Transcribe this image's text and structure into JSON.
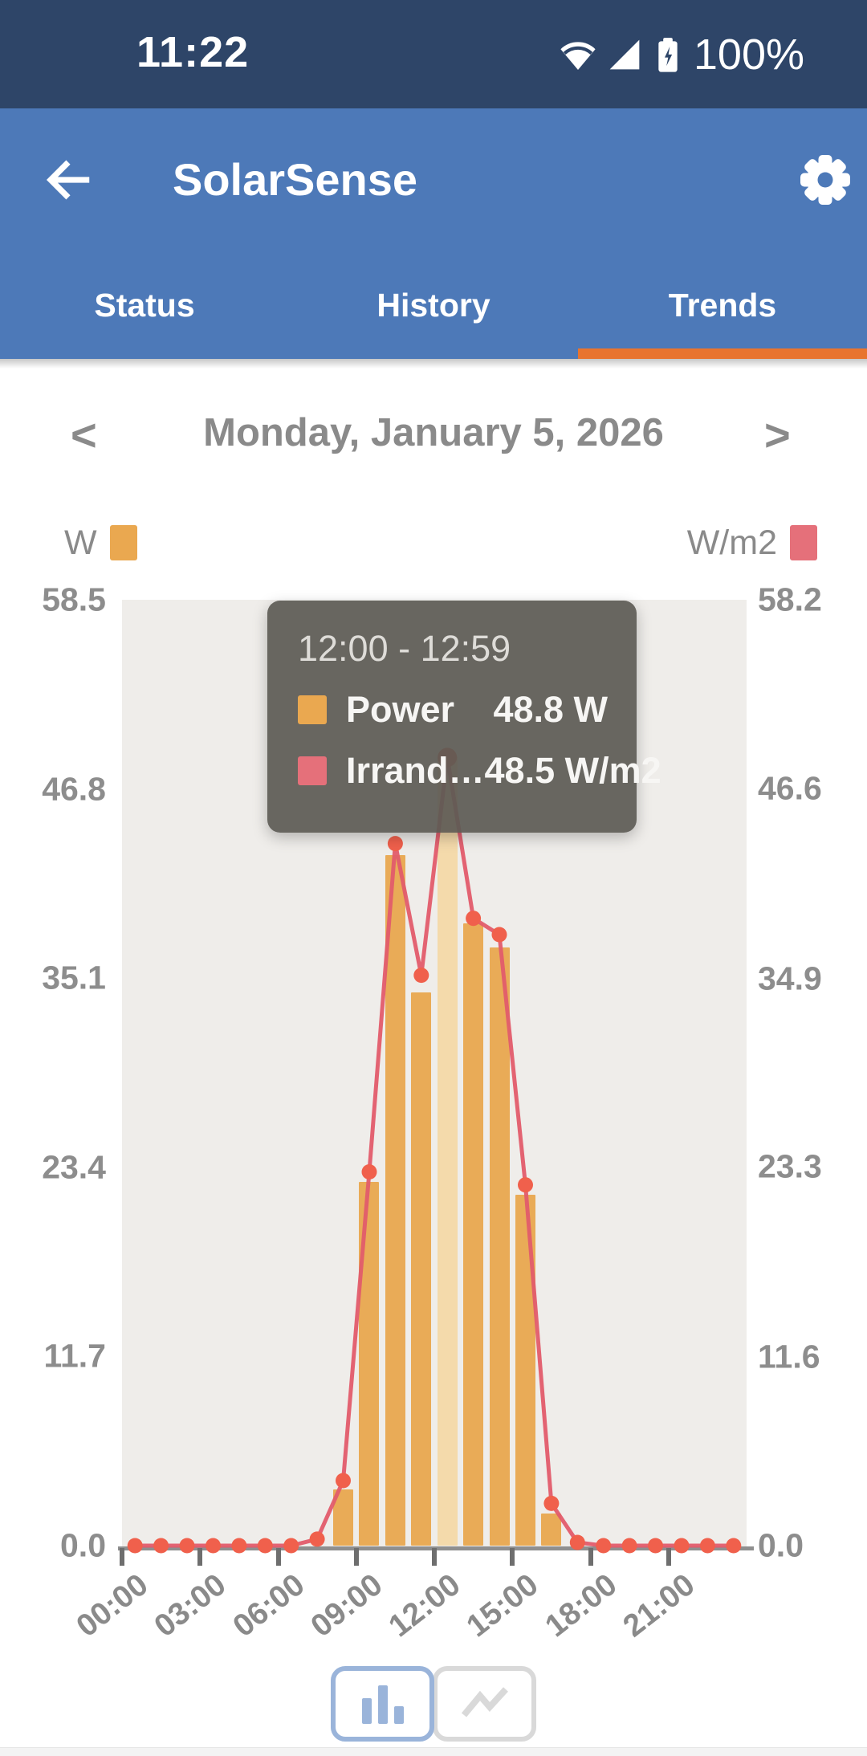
{
  "status_bar": {
    "time": "11:22",
    "battery": "100%"
  },
  "app_bar": {
    "title": "SolarSense"
  },
  "tabs": {
    "items": [
      "Status",
      "History",
      "Trends"
    ],
    "selected": "Trends"
  },
  "date_nav": {
    "prev": "<",
    "date": "Monday, January 5, 2026",
    "next": ">"
  },
  "legend": {
    "power_label": "W",
    "irradiance_label": "W/m2"
  },
  "tooltip": {
    "title": "12:00 - 12:59",
    "rows": [
      {
        "label": "Power",
        "value": "48.8 W"
      },
      {
        "label": "Irrand…",
        "value": "48.5 W/m2"
      }
    ]
  },
  "chart_data": {
    "type": "bar",
    "title": "",
    "x_tick_labels": [
      "00:00",
      "03:00",
      "06:00",
      "09:00",
      "12:00",
      "15:00",
      "18:00",
      "21:00"
    ],
    "x_tick_hours": [
      0,
      3,
      6,
      9,
      12,
      15,
      18,
      21
    ],
    "series": [
      {
        "name": "Power",
        "unit": "W",
        "type": "bar",
        "axis": "left",
        "values": [
          0,
          0,
          0,
          0,
          0,
          0,
          0,
          0,
          3.5,
          22.5,
          42.7,
          34.2,
          48.8,
          38.5,
          37.0,
          21.7,
          2.0,
          0,
          0,
          0,
          0,
          0,
          0,
          0
        ]
      },
      {
        "name": "Irradiance",
        "unit": "W/m2",
        "type": "line",
        "axis": "right",
        "values": [
          0,
          0,
          0,
          0,
          0,
          0,
          0,
          0.4,
          4.0,
          23.0,
          43.2,
          35.1,
          48.5,
          38.6,
          37.6,
          22.2,
          2.6,
          0.2,
          0,
          0,
          0,
          0,
          0,
          0
        ]
      }
    ],
    "left_axis": {
      "unit": "W",
      "max": 58.5,
      "ticks": [
        "58.5",
        "46.8",
        "35.1",
        "23.4",
        "11.7",
        "0.0"
      ]
    },
    "right_axis": {
      "unit": "W/m2",
      "max": 58.2,
      "ticks": [
        "58.2",
        "46.6",
        "34.9",
        "23.3",
        "11.6",
        "0.0"
      ]
    },
    "highlighted_hour": 12,
    "grid": false,
    "legend_position": "top"
  },
  "colors": {
    "status_bar": "#2e4568",
    "app_bar": "#4d79b8",
    "tab_underline": "#e8742f",
    "bar": "#e9ab57",
    "bar_highlight": "#f4daab",
    "line": "#e25c6c",
    "point": "#f0604c",
    "plot_bg": "#efedea",
    "legend_power": "#eaa850",
    "legend_irradiance": "#e5707a",
    "toggle_selected": "#9ab4da",
    "toggle_unselected": "#d9d9d9"
  }
}
